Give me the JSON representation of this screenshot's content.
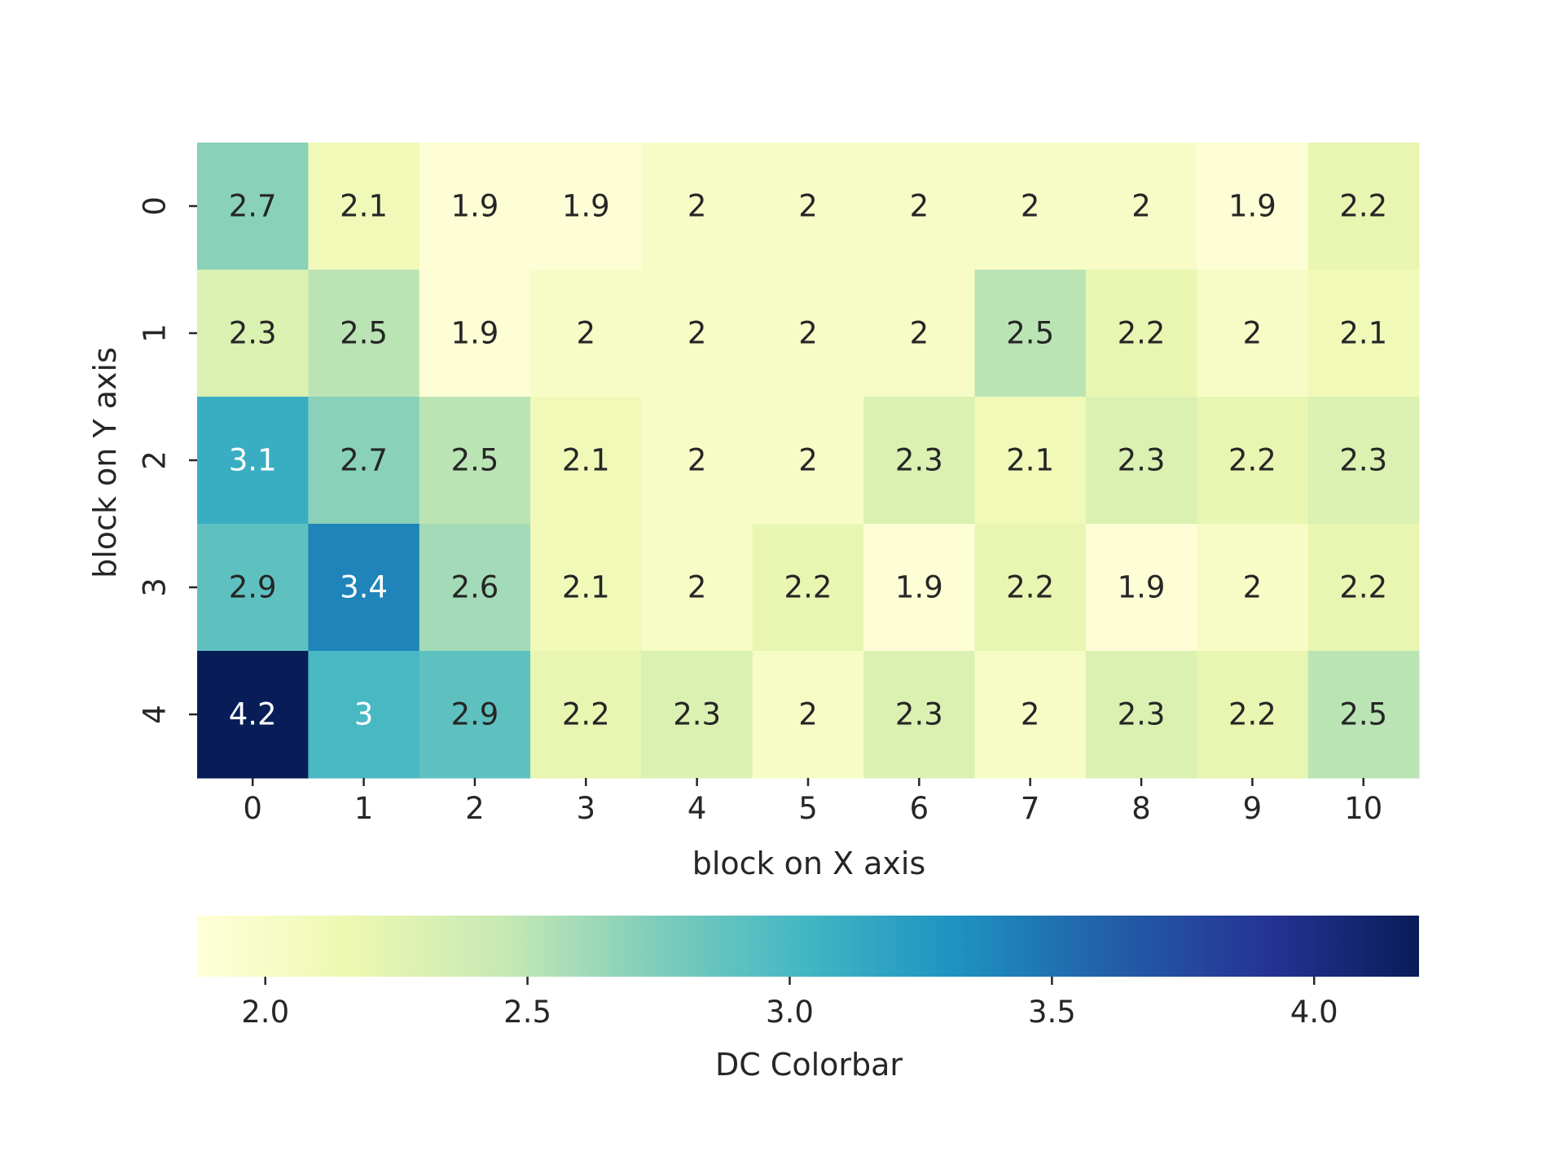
{
  "chart_data": {
    "type": "heatmap",
    "title": "",
    "xlabel": "block on X axis",
    "ylabel": "block on Y axis",
    "x_categories": [
      "0",
      "1",
      "2",
      "3",
      "4",
      "5",
      "6",
      "7",
      "8",
      "9",
      "10"
    ],
    "y_categories": [
      "0",
      "1",
      "2",
      "3",
      "4"
    ],
    "values": [
      [
        2.7,
        2.1,
        1.9,
        1.9,
        2,
        2,
        2,
        2,
        2,
        1.9,
        2.2
      ],
      [
        2.3,
        2.5,
        1.9,
        2,
        2,
        2,
        2,
        2.5,
        2.2,
        2,
        2.1
      ],
      [
        3.1,
        2.7,
        2.5,
        2.1,
        2,
        2,
        2.3,
        2.1,
        2.3,
        2.2,
        2.3
      ],
      [
        2.9,
        3.4,
        2.6,
        2.1,
        2,
        2.2,
        1.9,
        2.2,
        1.9,
        2,
        2.2
      ],
      [
        4.2,
        3,
        2.9,
        2.2,
        2.3,
        2,
        2.3,
        2,
        2.3,
        2.2,
        2.5
      ]
    ],
    "annotated": true,
    "colormap": "YlGnBu",
    "colormap_stops": [
      "#ffffd9",
      "#edf8b1",
      "#c7e9b4",
      "#7fcdbb",
      "#41b6c4",
      "#1d91c0",
      "#225ea8",
      "#253494",
      "#081d58"
    ],
    "value_range": [
      1.87,
      4.2
    ],
    "colorbar": {
      "label": "DC Colorbar",
      "orientation": "horizontal",
      "placement": "bottom",
      "ticks": [
        2.0,
        2.5,
        3.0,
        3.5,
        4.0
      ],
      "tick_labels": [
        "2.0",
        "2.5",
        "3.0",
        "3.5",
        "4.0"
      ]
    },
    "grid": false
  }
}
